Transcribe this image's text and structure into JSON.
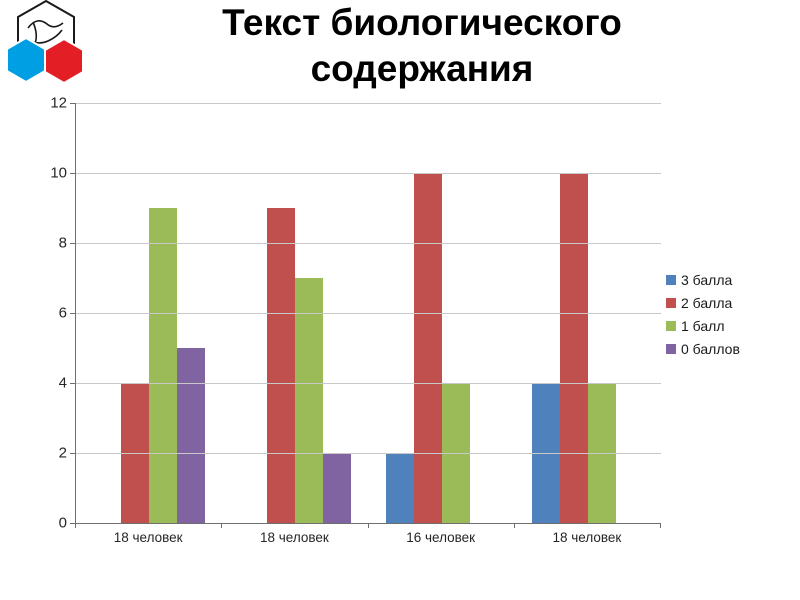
{
  "chart_data": {
    "type": "bar",
    "title": "Текст биологического содержания",
    "categories": [
      "18 человек",
      "18 человек",
      "16 человек",
      "18 человек"
    ],
    "series": [
      {
        "name": "3 балла",
        "color": "#4f81bd",
        "values": [
          0,
          0,
          2,
          4
        ]
      },
      {
        "name": "2 балла",
        "color": "#c0504d",
        "values": [
          4,
          9,
          10,
          10
        ]
      },
      {
        "name": "1 балл",
        "color": "#9bbb59",
        "values": [
          9,
          7,
          4,
          4
        ]
      },
      {
        "name": "0 баллов",
        "color": "#8064a2",
        "values": [
          5,
          2,
          0,
          0
        ]
      }
    ],
    "ylim": [
      0,
      12
    ],
    "yticks": [
      0,
      2,
      4,
      6,
      8,
      10,
      12
    ],
    "grid": true,
    "legend_position": "right"
  },
  "logo": {
    "name": "three-hexagon-emblem",
    "colors": {
      "white": "#ffffff",
      "blue": "#009fe3",
      "red": "#e31e24"
    }
  }
}
